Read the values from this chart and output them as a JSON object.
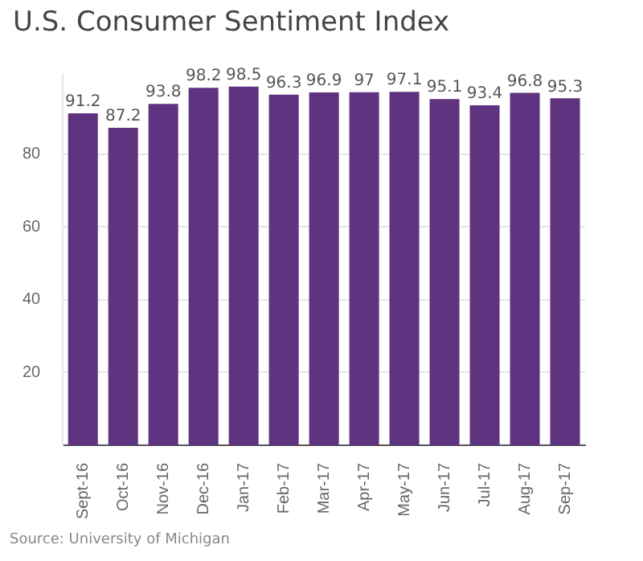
{
  "chart_data": {
    "type": "bar",
    "title": "U.S. Consumer Sentiment Index",
    "categories": [
      "Sept-16",
      "Oct-16",
      "Nov-16",
      "Dec-16",
      "Jan-17",
      "Feb-17",
      "Mar-17",
      "Apr-17",
      "May-17",
      "Jun-17",
      "Jul-17",
      "Aug-17",
      "Sep-17"
    ],
    "values": [
      91.2,
      87.2,
      93.8,
      98.2,
      98.5,
      96.3,
      96.9,
      97,
      97.1,
      95.1,
      93.4,
      96.8,
      95.3
    ],
    "color": "#5e3480",
    "ylim": [
      0,
      102
    ],
    "yticks": [
      20,
      40,
      60,
      80
    ],
    "grid": "y",
    "data_labels": true,
    "annotations": [
      "Source: University of Michigan"
    ]
  }
}
